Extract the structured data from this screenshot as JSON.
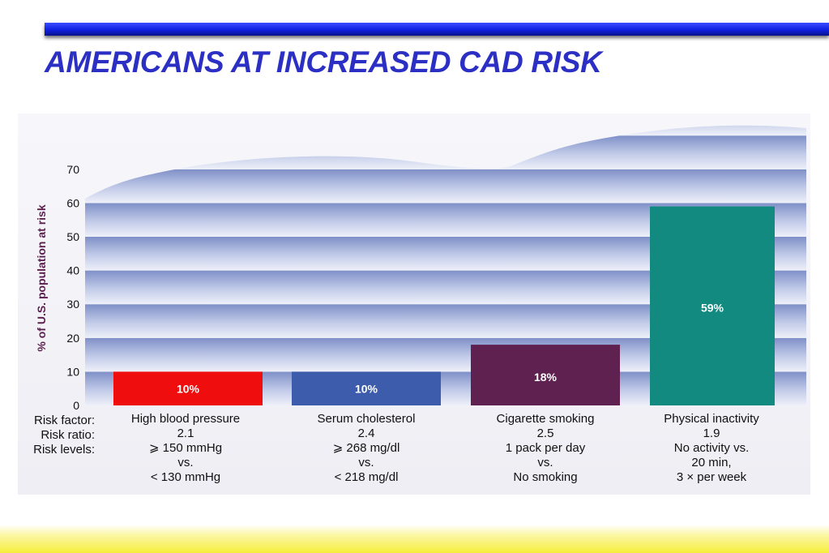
{
  "slide": {
    "title": "AMERICANS AT INCREASED CAD RISK"
  },
  "colors": {
    "title": "#2b2fc4",
    "top_bar": "#1020e0",
    "axis_title": "#5c1f4f",
    "bottom_bar": "#f6ee3c"
  },
  "chart_data": {
    "type": "bar",
    "title": "",
    "ylabel": "% of U.S. population at risk",
    "xlabel": "",
    "ylim": [
      0,
      70
    ],
    "yticks": [
      "0",
      "10",
      "20",
      "30",
      "40",
      "50",
      "60",
      "70"
    ],
    "grid": true,
    "categories": [
      "High blood pressure",
      "Serum cholesterol",
      "Cigarette smoking",
      "Physical inactivity"
    ],
    "values": [
      10,
      10,
      18,
      59
    ],
    "data_labels": [
      "10%",
      "10%",
      "18%",
      "59%"
    ],
    "bar_colors": [
      "#ef0d0d",
      "#3d5cab",
      "#5e2150",
      "#138a80"
    ]
  },
  "table": {
    "row_headers": [
      "Risk factor:",
      "Risk ratio:",
      "Risk levels:"
    ],
    "columns": [
      {
        "lines": [
          "High blood pressure",
          "2.1",
          "⩾ 150 mmHg",
          "vs.",
          "< 130 mmHg"
        ]
      },
      {
        "lines": [
          "Serum cholesterol",
          "2.4",
          "⩾ 268 mg/dl",
          "vs.",
          "< 218 mg/dl"
        ]
      },
      {
        "lines": [
          "Cigarette smoking",
          "2.5",
          "1 pack per day",
          "vs.",
          "No smoking"
        ]
      },
      {
        "lines": [
          "Physical inactivity",
          "1.9",
          "No activity vs.",
          "20 min,",
          "3 × per week"
        ]
      }
    ]
  }
}
